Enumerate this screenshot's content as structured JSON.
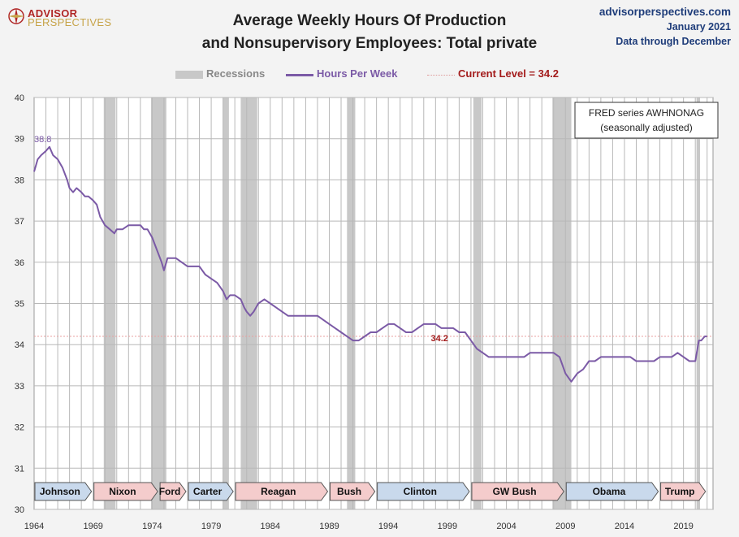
{
  "logo": {
    "line1": "ADVISOR",
    "line2": "PERSPECTIVES"
  },
  "header": {
    "title_line1": "Average Weekly Hours Of Production",
    "title_line2": "and Nonsupervisory Employees: Total private",
    "site": "advisorperspectives.com",
    "date": "January 2021",
    "through": "Data through December"
  },
  "legend": {
    "recessions": "Recessions",
    "series": "Hours Per Week",
    "current": "Current Level = 34.2"
  },
  "colors": {
    "line": "#7b5aa6",
    "recession": "#c8c8c8",
    "current": "#a31b1b",
    "red_pres": "#f4cccc",
    "blue_pres": "#c9d9ec"
  },
  "chart_data": {
    "type": "line",
    "xlim": [
      1964,
      2021.5
    ],
    "ylim": [
      30,
      40
    ],
    "yticks": [
      30,
      31,
      32,
      33,
      34,
      35,
      36,
      37,
      38,
      39,
      40
    ],
    "xtick_labels": [
      "1964",
      "1969",
      "1974",
      "1979",
      "1984",
      "1989",
      "1994",
      "1999",
      "2004",
      "2009",
      "2014",
      "2019"
    ],
    "xticks": [
      1964,
      1969,
      1974,
      1979,
      1984,
      1989,
      1994,
      1999,
      2004,
      2009,
      2014,
      2019
    ],
    "max_label": "38.8",
    "max_point": [
      1965.1,
      38.8
    ],
    "current_label": "34.2",
    "current_level": 34.2,
    "annotation": {
      "line1": "FRED series  AWHNONAG",
      "line2": "(seasonally adjusted)"
    },
    "recessions": [
      [
        1969.9,
        1970.9
      ],
      [
        1973.9,
        1975.2
      ],
      [
        1980.0,
        1980.5
      ],
      [
        1981.5,
        1982.9
      ],
      [
        1990.5,
        1991.2
      ],
      [
        2001.2,
        2001.9
      ],
      [
        2007.9,
        2009.5
      ],
      [
        2020.1,
        2020.4
      ]
    ],
    "presidents": [
      {
        "name": "Johnson",
        "start": 1964.0,
        "end": 1969.0,
        "party": "D"
      },
      {
        "name": "Nixon",
        "start": 1969.0,
        "end": 1974.6,
        "party": "R"
      },
      {
        "name": "Ford",
        "start": 1974.6,
        "end": 1977.0,
        "party": "R"
      },
      {
        "name": "Carter",
        "start": 1977.0,
        "end": 1981.0,
        "party": "D"
      },
      {
        "name": "Reagan",
        "start": 1981.0,
        "end": 1989.0,
        "party": "R"
      },
      {
        "name": "Bush",
        "start": 1989.0,
        "end": 1993.0,
        "party": "R"
      },
      {
        "name": "Clinton",
        "start": 1993.0,
        "end": 2001.0,
        "party": "D"
      },
      {
        "name": "GW Bush",
        "start": 2001.0,
        "end": 2009.0,
        "party": "R"
      },
      {
        "name": "Obama",
        "start": 2009.0,
        "end": 2017.0,
        "party": "D"
      },
      {
        "name": "Trump",
        "start": 2017.0,
        "end": 2021.0,
        "party": "R"
      }
    ],
    "series": [
      {
        "name": "Hours Per Week",
        "x": [
          1964.0,
          1964.3,
          1964.6,
          1965.0,
          1965.3,
          1965.6,
          1966.0,
          1966.4,
          1966.8,
          1967.0,
          1967.3,
          1967.6,
          1968.0,
          1968.3,
          1968.6,
          1969.0,
          1969.3,
          1969.6,
          1970.0,
          1970.4,
          1970.8,
          1971.0,
          1971.5,
          1972.0,
          1972.5,
          1973.0,
          1973.3,
          1973.6,
          1974.0,
          1974.4,
          1974.8,
          1975.0,
          1975.3,
          1975.6,
          1976.0,
          1976.5,
          1977.0,
          1977.5,
          1978.0,
          1978.5,
          1979.0,
          1979.5,
          1980.0,
          1980.3,
          1980.6,
          1981.0,
          1981.5,
          1981.8,
          1982.0,
          1982.3,
          1982.6,
          1983.0,
          1983.5,
          1984.0,
          1984.5,
          1985.0,
          1985.5,
          1986.0,
          1986.5,
          1987.0,
          1987.5,
          1988.0,
          1988.5,
          1989.0,
          1989.5,
          1990.0,
          1990.5,
          1991.0,
          1991.5,
          1992.0,
          1992.5,
          1993.0,
          1993.5,
          1994.0,
          1994.5,
          1995.0,
          1995.5,
          1996.0,
          1996.5,
          1997.0,
          1997.5,
          1998.0,
          1998.5,
          1999.0,
          1999.5,
          2000.0,
          2000.5,
          2001.0,
          2001.5,
          2002.0,
          2002.5,
          2003.0,
          2003.5,
          2004.0,
          2004.5,
          2005.0,
          2005.5,
          2006.0,
          2006.5,
          2007.0,
          2007.5,
          2008.0,
          2008.5,
          2009.0,
          2009.5,
          2010.0,
          2010.5,
          2011.0,
          2011.5,
          2012.0,
          2012.5,
          2013.0,
          2013.5,
          2014.0,
          2014.5,
          2015.0,
          2015.5,
          2016.0,
          2016.5,
          2017.0,
          2017.5,
          2018.0,
          2018.5,
          2019.0,
          2019.5,
          2020.0,
          2020.3,
          2020.5,
          2020.8,
          2021.0
        ],
        "y": [
          38.2,
          38.5,
          38.6,
          38.7,
          38.8,
          38.6,
          38.5,
          38.3,
          38.0,
          37.8,
          37.7,
          37.8,
          37.7,
          37.6,
          37.6,
          37.5,
          37.4,
          37.1,
          36.9,
          36.8,
          36.7,
          36.8,
          36.8,
          36.9,
          36.9,
          36.9,
          36.8,
          36.8,
          36.6,
          36.3,
          36.0,
          35.8,
          36.1,
          36.1,
          36.1,
          36.0,
          35.9,
          35.9,
          35.9,
          35.7,
          35.6,
          35.5,
          35.3,
          35.1,
          35.2,
          35.2,
          35.1,
          34.9,
          34.8,
          34.7,
          34.8,
          35.0,
          35.1,
          35.0,
          34.9,
          34.8,
          34.7,
          34.7,
          34.7,
          34.7,
          34.7,
          34.7,
          34.6,
          34.5,
          34.4,
          34.3,
          34.2,
          34.1,
          34.1,
          34.2,
          34.3,
          34.3,
          34.4,
          34.5,
          34.5,
          34.4,
          34.3,
          34.3,
          34.4,
          34.5,
          34.5,
          34.5,
          34.4,
          34.4,
          34.4,
          34.3,
          34.3,
          34.1,
          33.9,
          33.8,
          33.7,
          33.7,
          33.7,
          33.7,
          33.7,
          33.7,
          33.7,
          33.8,
          33.8,
          33.8,
          33.8,
          33.8,
          33.7,
          33.3,
          33.1,
          33.3,
          33.4,
          33.6,
          33.6,
          33.7,
          33.7,
          33.7,
          33.7,
          33.7,
          33.7,
          33.6,
          33.6,
          33.6,
          33.6,
          33.7,
          33.7,
          33.7,
          33.8,
          33.7,
          33.6,
          33.6,
          34.1,
          34.1,
          34.2,
          34.2
        ]
      }
    ]
  }
}
